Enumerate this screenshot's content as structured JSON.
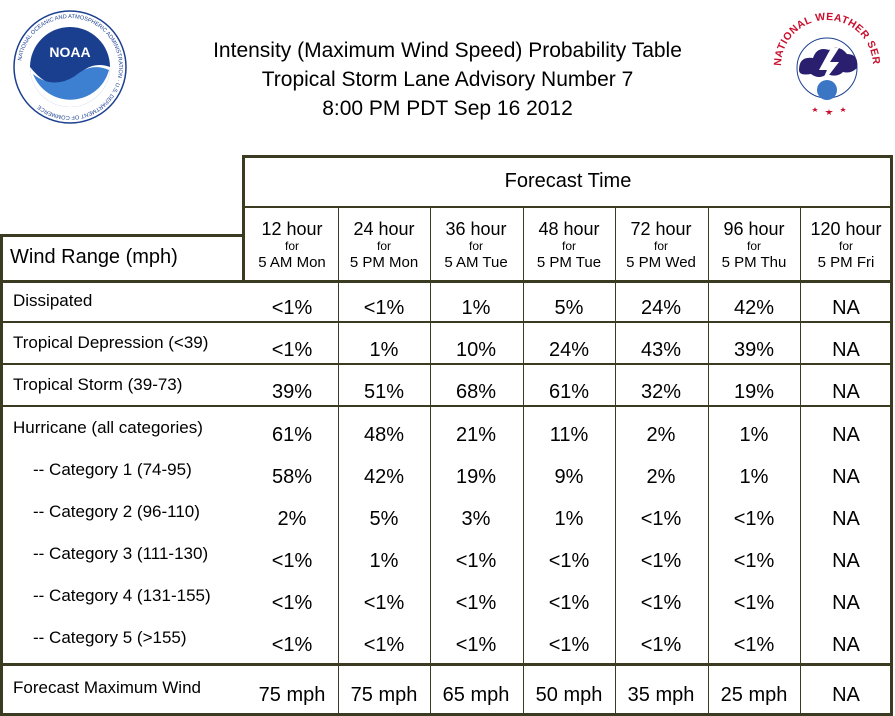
{
  "header": {
    "title_line1": "Intensity (Maximum Wind Speed) Probability Table",
    "title_line2": "Tropical Storm Lane Advisory Number 7",
    "title_line3": "8:00 PM PDT Sep 16 2012"
  },
  "logos": {
    "noaa_text": "NOAA",
    "noaa_ring": "NATIONAL OCEANIC AND ATMOSPHERIC ADMINISTRATION · U.S. DEPARTMENT OF COMMERCE",
    "nws_ring": "NATIONAL WEATHER SERVICE"
  },
  "table": {
    "forecast_time_label": "Forecast Time",
    "wind_range_label": "Wind Range (mph)",
    "columns": [
      {
        "hour": "12 hour",
        "for": "for",
        "time": "5 AM Mon"
      },
      {
        "hour": "24 hour",
        "for": "for",
        "time": "5 PM Mon"
      },
      {
        "hour": "36 hour",
        "for": "for",
        "time": "5 AM Tue"
      },
      {
        "hour": "48 hour",
        "for": "for",
        "time": "5 PM Tue"
      },
      {
        "hour": "72 hour",
        "for": "for",
        "time": "5 PM Wed"
      },
      {
        "hour": "96 hour",
        "for": "for",
        "time": "5 PM Thu"
      },
      {
        "hour": "120 hour",
        "for": "for",
        "time": "5 PM Fri"
      }
    ],
    "rows": [
      {
        "label": "Dissipated",
        "values": [
          "<1%",
          "<1%",
          "1%",
          "5%",
          "24%",
          "42%",
          "NA"
        ]
      },
      {
        "label": "Tropical Depression (<39)",
        "values": [
          "<1%",
          "1%",
          "10%",
          "24%",
          "43%",
          "39%",
          "NA"
        ]
      },
      {
        "label": "Tropical Storm (39-73)",
        "values": [
          "39%",
          "51%",
          "68%",
          "61%",
          "32%",
          "19%",
          "NA"
        ]
      },
      {
        "label": "Hurricane (all categories)",
        "values": [
          "61%",
          "48%",
          "21%",
          "11%",
          "2%",
          "1%",
          "NA"
        ]
      },
      {
        "label": "-- Category 1 (74-95)",
        "values": [
          "58%",
          "42%",
          "19%",
          "9%",
          "2%",
          "1%",
          "NA"
        ]
      },
      {
        "label": "-- Category 2 (96-110)",
        "values": [
          "2%",
          "5%",
          "3%",
          "1%",
          "<1%",
          "<1%",
          "NA"
        ]
      },
      {
        "label": "-- Category 3 (111-130)",
        "values": [
          "<1%",
          "1%",
          "<1%",
          "<1%",
          "<1%",
          "<1%",
          "NA"
        ]
      },
      {
        "label": "-- Category 4 (131-155)",
        "values": [
          "<1%",
          "<1%",
          "<1%",
          "<1%",
          "<1%",
          "<1%",
          "NA"
        ]
      },
      {
        "label": "-- Category 5 (>155)",
        "values": [
          "<1%",
          "<1%",
          "<1%",
          "<1%",
          "<1%",
          "<1%",
          "NA"
        ]
      },
      {
        "label": "Forecast Maximum Wind",
        "values": [
          "75 mph",
          "75 mph",
          "65 mph",
          "50 mph",
          "35 mph",
          "25 mph",
          "NA"
        ]
      }
    ]
  },
  "colors": {
    "border": "#3b3b21",
    "noaa_blue": "#1b3f8f",
    "nws_red": "#c8102e"
  }
}
